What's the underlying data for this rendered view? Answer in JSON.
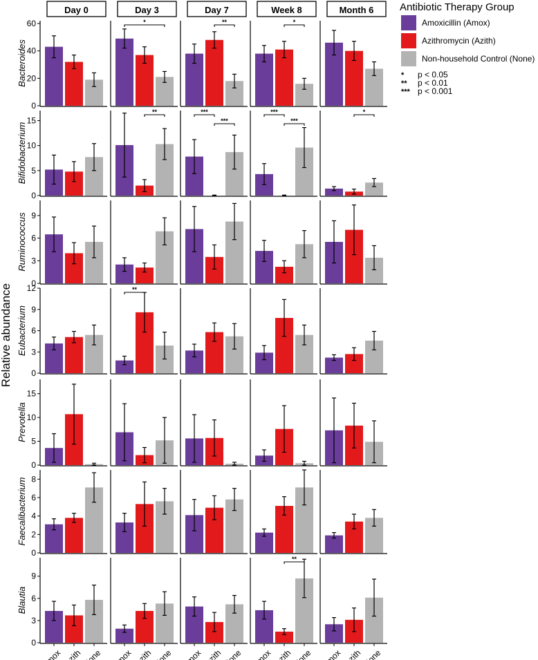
{
  "chart_data": {
    "type": "bar",
    "timepoints": [
      "Day 0",
      "Day 3",
      "Day 7",
      "Week 8",
      "Month 6"
    ],
    "categories": [
      "Amox",
      "Azith",
      "None"
    ],
    "ylabel": "Relative abundance",
    "legend": {
      "title": "Antibiotic Therapy Group",
      "placement": "top-right",
      "entries": [
        "Amoxicillin (Amox)",
        "Azithromycin (Azith)",
        "Non-household Control (None)"
      ],
      "significance": [
        {
          "symbol": "*",
          "text": "p < 0.05"
        },
        {
          "symbol": "**",
          "text": "p < 0.01"
        },
        {
          "symbol": "***",
          "text": "p < 0.001"
        }
      ]
    },
    "colors": [
      "#6a3d9a",
      "#e31a1c",
      "#b3b3b3"
    ],
    "panels": [
      {
        "taxon": "Bacteroides",
        "ylim": [
          0,
          62
        ],
        "yticks": [
          "0",
          "20",
          "40",
          "60"
        ],
        "values": [
          [
            43,
            32,
            19
          ],
          [
            49,
            37,
            21
          ],
          [
            38,
            48,
            18
          ],
          [
            38,
            41,
            16
          ],
          [
            46,
            40,
            27
          ]
        ],
        "err": [
          [
            8,
            5,
            5
          ],
          [
            7,
            6,
            4
          ],
          [
            7,
            6,
            5
          ],
          [
            6,
            6,
            4
          ],
          [
            9,
            7,
            5
          ]
        ],
        "sig": [
          [],
          [
            {
              "from": 0,
              "to": 2,
              "label": "*"
            }
          ],
          [
            {
              "from": 1,
              "to": 2,
              "label": "**"
            }
          ],
          [
            {
              "from": 1,
              "to": 2,
              "label": "*"
            }
          ],
          []
        ]
      },
      {
        "taxon": "Bifidobacterium",
        "ylim": [
          0,
          17
        ],
        "yticks": [
          "0",
          "5",
          "10",
          "15"
        ],
        "values": [
          [
            5.2,
            4.8,
            7.7
          ],
          [
            10.1,
            2.0,
            10.3
          ],
          [
            7.8,
            0.0,
            8.7
          ],
          [
            4.3,
            0.0,
            9.6
          ],
          [
            1.4,
            0.8,
            2.6
          ]
        ],
        "err": [
          [
            2.9,
            2.0,
            2.7
          ],
          [
            6.4,
            1.2,
            3.1
          ],
          [
            3.4,
            0.1,
            3.4
          ],
          [
            2.1,
            0.1,
            4.0
          ],
          [
            0.4,
            0.5,
            0.8
          ]
        ],
        "sig": [
          [],
          [
            {
              "from": 1,
              "to": 2,
              "label": "**"
            }
          ],
          [
            {
              "from": 0,
              "to": 1,
              "label": "***"
            },
            {
              "from": 1,
              "to": 2,
              "label": "***"
            }
          ],
          [
            {
              "from": 0,
              "to": 1,
              "label": "***"
            },
            {
              "from": 1,
              "to": 2,
              "label": "***"
            }
          ],
          [
            {
              "from": 1,
              "to": 2,
              "label": "*"
            }
          ]
        ]
      },
      {
        "taxon": "Ruminococcus",
        "ylim": [
          0,
          11
        ],
        "yticks": [
          "0",
          "3",
          "6",
          "9"
        ],
        "values": [
          [
            6.5,
            4.0,
            5.5
          ],
          [
            2.5,
            2.1,
            6.9
          ],
          [
            7.2,
            3.5,
            8.2
          ],
          [
            4.3,
            2.2,
            5.2
          ],
          [
            5.5,
            7.1,
            3.4
          ]
        ],
        "err": [
          [
            2.3,
            1.4,
            2.1
          ],
          [
            0.9,
            0.6,
            1.8
          ],
          [
            3.0,
            1.6,
            2.4
          ],
          [
            1.4,
            0.8,
            1.8
          ],
          [
            2.8,
            3.3,
            1.6
          ]
        ],
        "sig": [
          [],
          [],
          [],
          [],
          []
        ]
      },
      {
        "taxon": "Eubacterium",
        "ylim": [
          0,
          12
        ],
        "yticks": [
          "0",
          "3",
          "6",
          "9",
          "12"
        ],
        "values": [
          [
            4.2,
            5.1,
            5.4
          ],
          [
            1.8,
            8.6,
            3.9
          ],
          [
            3.2,
            5.8,
            5.2
          ],
          [
            2.9,
            7.8,
            5.4
          ],
          [
            2.2,
            2.7,
            4.6
          ]
        ],
        "err": [
          [
            0.9,
            0.8,
            1.4
          ],
          [
            0.6,
            2.8,
            1.9
          ],
          [
            0.9,
            1.3,
            1.8
          ],
          [
            1.0,
            2.6,
            1.4
          ],
          [
            0.4,
            0.9,
            1.3
          ]
        ],
        "sig": [
          [],
          [
            {
              "from": 0,
              "to": 1,
              "label": "**"
            }
          ],
          [],
          [],
          []
        ]
      },
      {
        "taxon": "Prevotella",
        "ylim": [
          0,
          18
        ],
        "yticks": [
          "0",
          "5",
          "10",
          "15"
        ],
        "values": [
          [
            3.6,
            10.7,
            0.2
          ],
          [
            6.9,
            2.1,
            5.2
          ],
          [
            5.6,
            5.7,
            0.3
          ],
          [
            2.0,
            7.6,
            0.4
          ],
          [
            7.3,
            8.3,
            4.9
          ]
        ],
        "err": [
          [
            3.0,
            6.3,
            0.2
          ],
          [
            6.0,
            1.6,
            4.8
          ],
          [
            5.0,
            3.8,
            0.3
          ],
          [
            1.2,
            4.9,
            0.4
          ],
          [
            6.8,
            4.7,
            4.4
          ]
        ],
        "sig": [
          [],
          [],
          [],
          [],
          []
        ]
      },
      {
        "taxon": "Faecalibacterium",
        "ylim": [
          0,
          9
        ],
        "yticks": [
          "0",
          "2",
          "4",
          "6",
          "8"
        ],
        "values": [
          [
            3.1,
            3.8,
            7.1
          ],
          [
            3.3,
            5.3,
            5.6
          ],
          [
            4.1,
            4.9,
            5.8
          ],
          [
            2.2,
            5.1,
            7.1
          ],
          [
            1.9,
            3.4,
            3.8
          ]
        ],
        "err": [
          [
            0.6,
            0.5,
            1.6
          ],
          [
            1.0,
            2.4,
            1.4
          ],
          [
            1.7,
            1.3,
            1.2
          ],
          [
            0.4,
            1.0,
            1.9
          ],
          [
            0.3,
            0.8,
            0.9
          ]
        ],
        "sig": [
          [],
          [],
          [],
          [],
          []
        ]
      },
      {
        "taxon": "Blautia",
        "ylim": [
          0,
          11.5
        ],
        "yticks": [
          "0",
          "3",
          "6",
          "9"
        ],
        "values": [
          [
            4.3,
            3.7,
            5.8
          ],
          [
            1.9,
            4.3,
            5.3
          ],
          [
            4.9,
            2.8,
            5.2
          ],
          [
            4.4,
            1.5,
            8.7
          ],
          [
            2.5,
            3.1,
            6.1
          ]
        ],
        "err": [
          [
            1.3,
            1.4,
            2.0
          ],
          [
            0.5,
            1.0,
            1.6
          ],
          [
            1.3,
            1.3,
            1.2
          ],
          [
            1.2,
            0.4,
            2.6
          ],
          [
            0.9,
            1.6,
            2.5
          ]
        ],
        "sig": [
          [],
          [],
          [],
          [
            {
              "from": 1,
              "to": 2,
              "label": "**"
            }
          ],
          []
        ]
      }
    ]
  }
}
